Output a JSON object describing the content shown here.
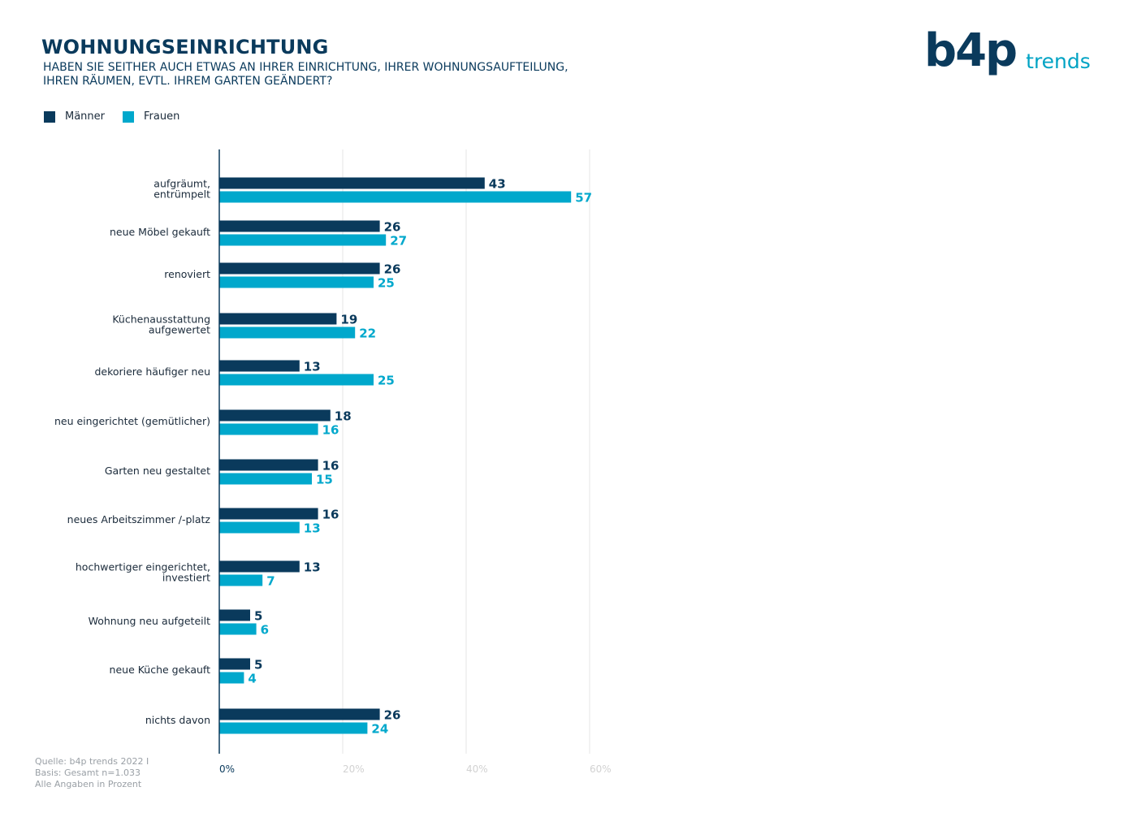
{
  "header": {
    "title": "WOHNUNGSEINRICHTUNG",
    "subtitle_line1": "HABEN SIE SEITHER AUCH ETWAS AN IHRER EINRICHTUNG, IHRER WOHNUNGSAUFTEILUNG,",
    "subtitle_line2": "IHREN RÄUMEN, EVTL. IHREM GARTEN GEÄNDERT?"
  },
  "logo": {
    "main": "b4p",
    "trends": "trends"
  },
  "legend": [
    {
      "label": "Männer",
      "color": "#0a3a5c"
    },
    {
      "label": "Frauen",
      "color": "#00a8cc"
    }
  ],
  "footer": {
    "line1": "Quelle: b4p trends 2022 I",
    "line2": "Basis: Gesamt n=1.033",
    "line3": "Alle Angaben in Prozent"
  },
  "chart_data": {
    "type": "bar",
    "orientation": "horizontal",
    "categories": [
      [
        "aufgräumt,",
        "entrümpelt"
      ],
      [
        "neue Möbel gekauft"
      ],
      [
        "renoviert"
      ],
      [
        "Küchenausstattung",
        "aufgewertet"
      ],
      [
        "dekoriere häufiger neu"
      ],
      [
        "neu eingerichtet (gemütlicher)"
      ],
      [
        "Garten neu gestaltet"
      ],
      [
        "neues Arbeitszimmer /-platz"
      ],
      [
        "hochwertiger eingerichtet,",
        "investiert"
      ],
      [
        "Wohnung neu aufgeteilt"
      ],
      [
        "neue Küche gekauft"
      ],
      [
        "nichts davon"
      ]
    ],
    "series": [
      {
        "name": "Männer",
        "color": "#0a3a5c",
        "values": [
          43,
          26,
          26,
          19,
          13,
          18,
          16,
          16,
          13,
          5,
          5,
          26
        ]
      },
      {
        "name": "Frauen",
        "color": "#00a8cc",
        "values": [
          57,
          27,
          25,
          22,
          25,
          16,
          15,
          13,
          7,
          6,
          4,
          24
        ]
      }
    ],
    "xlim": [
      0,
      60
    ],
    "xticks": [
      "0%",
      "20%",
      "40%",
      "60%"
    ],
    "grid": true,
    "legend_position": "top-left"
  }
}
